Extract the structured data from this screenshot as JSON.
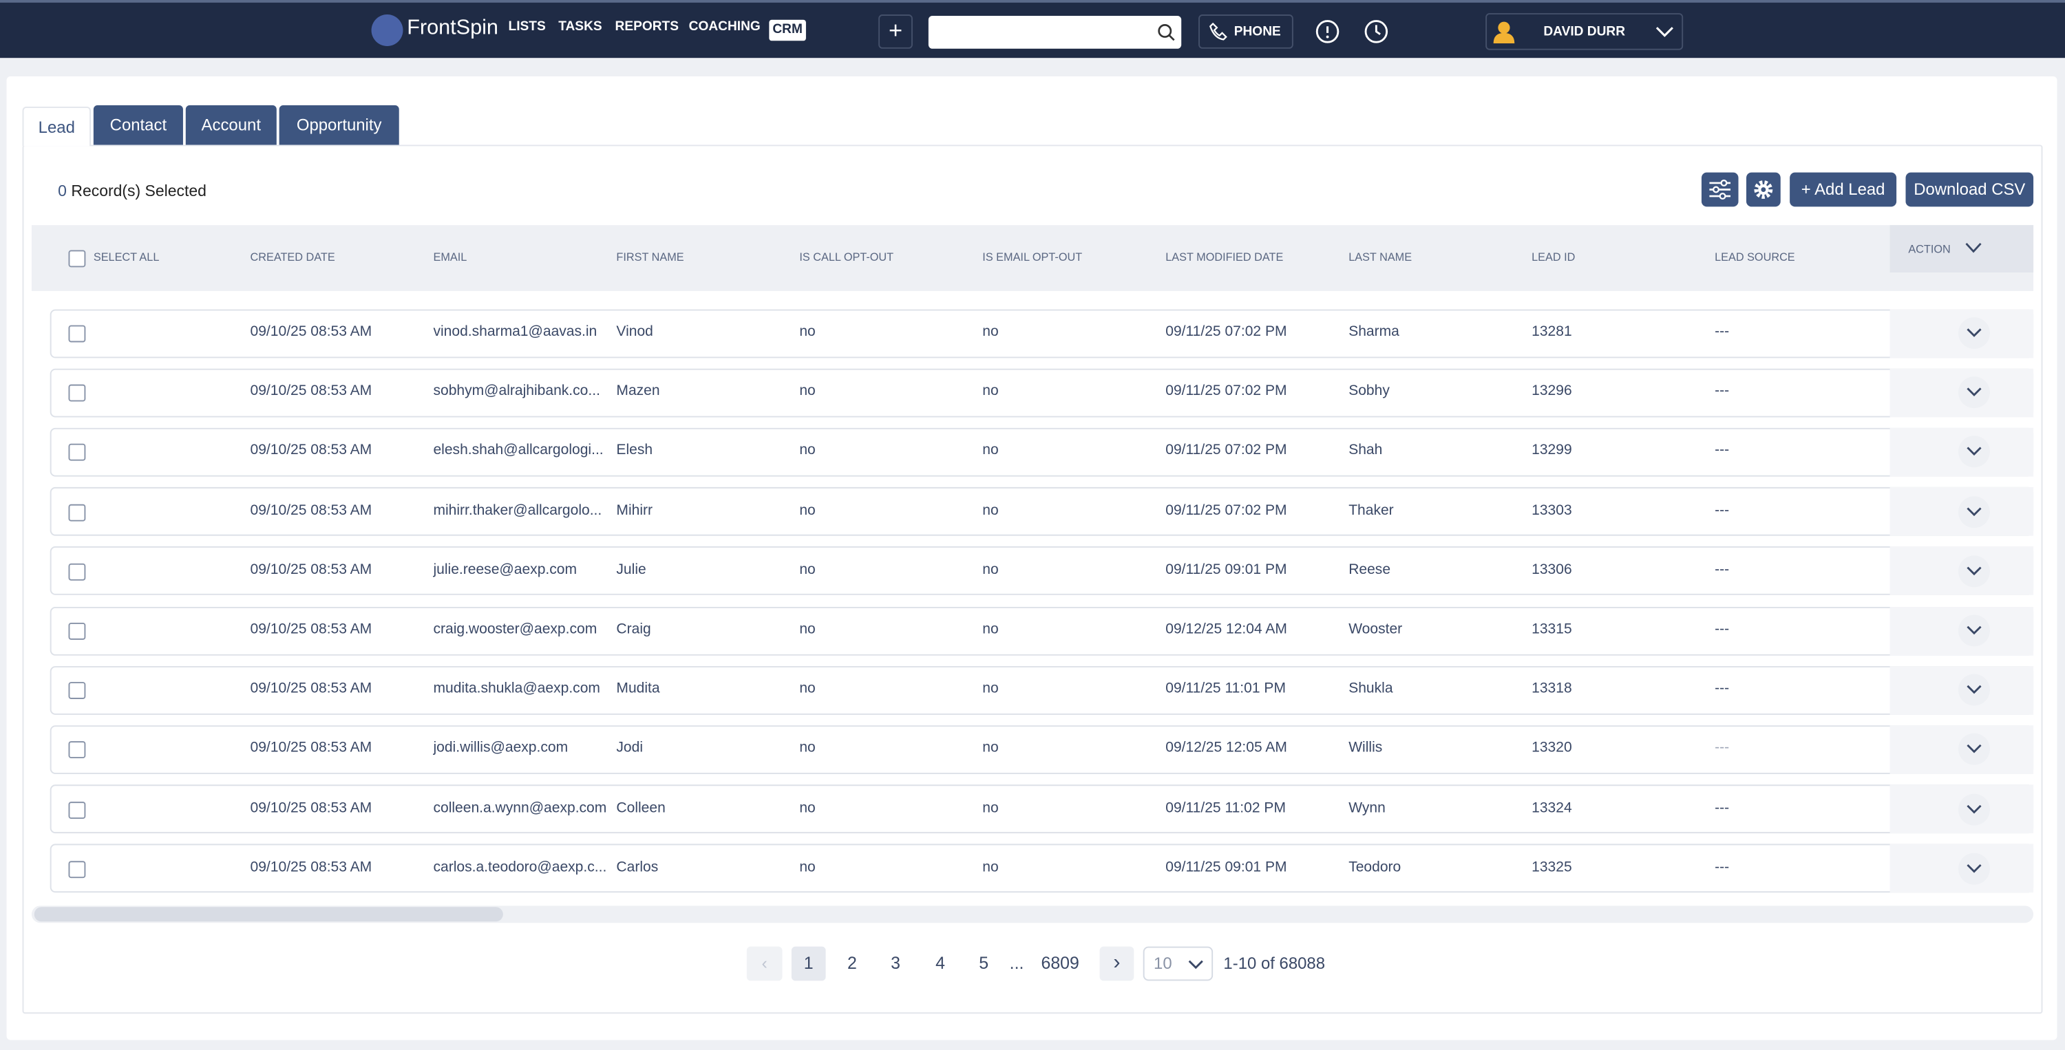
{
  "nav": {
    "brand": "FrontSpin",
    "links": [
      "LISTS",
      "TASKS",
      "REPORTS",
      "COACHING"
    ],
    "active_link": "CRM",
    "phone": "PHONE",
    "user": "DAVID DURR"
  },
  "tabs": [
    "Lead",
    "Contact",
    "Account",
    "Opportunity"
  ],
  "selection": {
    "count": "0",
    "label": "Record(s) Selected"
  },
  "buttons": {
    "add": "Add Lead",
    "download": "Download CSV"
  },
  "table": {
    "headers": [
      "SELECT ALL",
      "CREATED DATE",
      "EMAIL",
      "FIRST NAME",
      "IS CALL OPT-OUT",
      "IS EMAIL OPT-OUT",
      "LAST MODIFIED DATE",
      "LAST NAME",
      "LEAD ID",
      "LEAD SOURCE",
      "ACTION"
    ],
    "rows": [
      [
        "09/10/25 08:53 AM",
        "vinod.sharma1@aavas.in",
        "Vinod",
        "no",
        "no",
        "09/11/25 07:02 PM",
        "Sharma",
        "13281",
        "---"
      ],
      [
        "09/10/25 08:53 AM",
        "sobhym@alrajhibank.co...",
        "Mazen",
        "no",
        "no",
        "09/11/25 07:02 PM",
        "Sobhy",
        "13296",
        "---"
      ],
      [
        "09/10/25 08:53 AM",
        "elesh.shah@allcargologi...",
        "Elesh",
        "no",
        "no",
        "09/11/25 07:02 PM",
        "Shah",
        "13299",
        "---"
      ],
      [
        "09/10/25 08:53 AM",
        "mihirr.thaker@allcargolo...",
        "Mihirr",
        "no",
        "no",
        "09/11/25 07:02 PM",
        "Thaker",
        "13303",
        "---"
      ],
      [
        "09/10/25 08:53 AM",
        "julie.reese@aexp.com",
        "Julie",
        "no",
        "no",
        "09/11/25 09:01 PM",
        "Reese",
        "13306",
        "---"
      ],
      [
        "09/10/25 08:53 AM",
        "craig.wooster@aexp.com",
        "Craig",
        "no",
        "no",
        "09/12/25 12:04 AM",
        "Wooster",
        "13315",
        "---"
      ],
      [
        "09/10/25 08:53 AM",
        "mudita.shukla@aexp.com",
        "Mudita",
        "no",
        "no",
        "09/11/25 11:01 PM",
        "Shukla",
        "13318",
        "---"
      ],
      [
        "09/10/25 08:53 AM",
        "jodi.willis@aexp.com",
        "Jodi",
        "no",
        "no",
        "09/12/25 12:05 AM",
        "Willis",
        "13320",
        "---"
      ],
      [
        "09/10/25 08:53 AM",
        "colleen.a.wynn@aexp.com",
        "Colleen",
        "no",
        "no",
        "09/11/25 11:02 PM",
        "Wynn",
        "13324",
        "---"
      ],
      [
        "09/10/25 08:53 AM",
        "carlos.a.teodoro@aexp.c...",
        "Carlos",
        "no",
        "no",
        "09/11/25 09:01 PM",
        "Teodoro",
        "13325",
        "---"
      ]
    ]
  },
  "pagination": {
    "pages": [
      "1",
      "2",
      "3",
      "4",
      "5"
    ],
    "ellipsis": "...",
    "last": "6809",
    "page_size": "10",
    "range": "1-10 of 68088"
  }
}
